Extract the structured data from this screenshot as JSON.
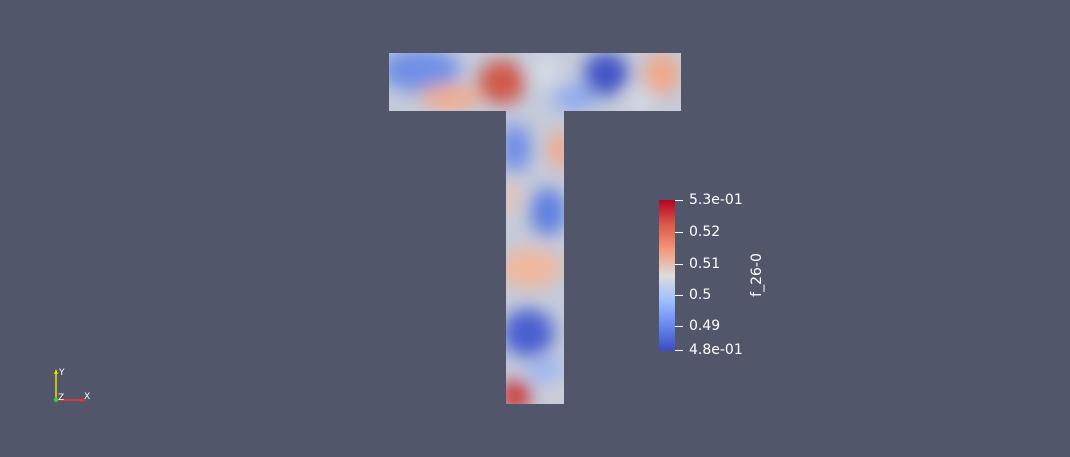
{
  "scalar_bar": {
    "title": "f_26-0",
    "labels": [
      "5.3e-01",
      "0.52",
      "0.51",
      "0.5",
      "0.49",
      "4.8e-01"
    ],
    "colors": [
      "#b40426",
      "#dc5d4a",
      "#f4987a",
      "#dddcdc",
      "#9ebeff",
      "#6788ee",
      "#3b4cc0"
    ]
  },
  "axes": {
    "x": "X",
    "y": "Y",
    "z": "Z",
    "x_color": "#ff2a2a",
    "y_color": "#e6e600",
    "z_color": "#2ad52a"
  },
  "background": "#52566b"
}
